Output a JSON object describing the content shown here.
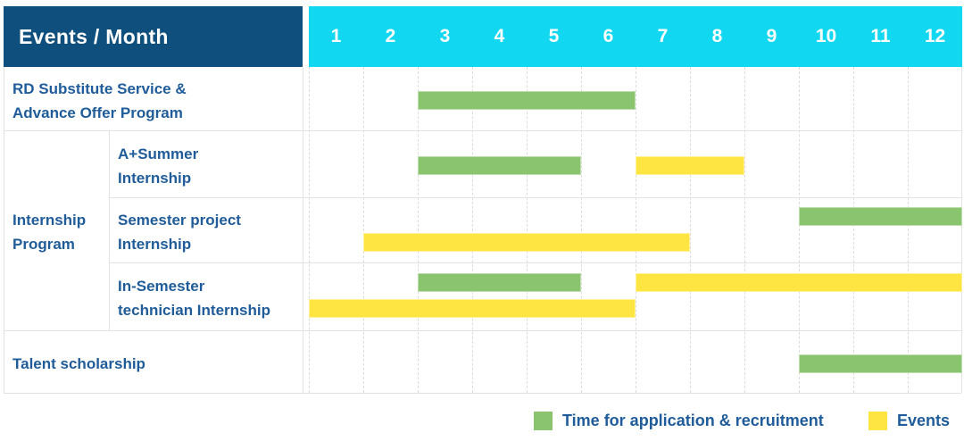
{
  "colors": {
    "navy": "#0F4F7E",
    "cyan": "#11D7F0",
    "green": "#8BC46E",
    "yellow": "#FFE542",
    "label_text": "#1F5C99",
    "grid_line": "#E2E2E2"
  },
  "table": {
    "corner_label": "Events / Month",
    "months": [
      "1",
      "2",
      "3",
      "4",
      "5",
      "6",
      "7",
      "8",
      "9",
      "10",
      "11",
      "12"
    ],
    "groups": [
      {
        "label_lines": [],
        "rows": [
          {
            "label_lines": [
              "RD Substitute Service &",
              "Advance Offer Program"
            ],
            "bars": [
              {
                "kind": "application",
                "start": 3,
                "end": 6,
                "lane": "mid"
              }
            ]
          }
        ]
      },
      {
        "label_lines": [
          "Internship",
          "Program"
        ],
        "rows": [
          {
            "label_lines": [
              "A+Summer",
              "Internship"
            ],
            "bars": [
              {
                "kind": "application",
                "start": 3,
                "end": 5,
                "lane": "mid"
              },
              {
                "kind": "event",
                "start": 7,
                "end": 8,
                "lane": "mid"
              }
            ]
          },
          {
            "label_lines": [
              "Semester project",
              "Internship"
            ],
            "bars": [
              {
                "kind": "application",
                "start": 10,
                "end": 12,
                "lane": "upper"
              },
              {
                "kind": "event",
                "start": 2,
                "end": 7,
                "lane": "lower"
              }
            ]
          },
          {
            "label_lines": [
              "In-Semester",
              "technician Internship"
            ],
            "bars": [
              {
                "kind": "application",
                "start": 3,
                "end": 5,
                "lane": "upper"
              },
              {
                "kind": "event",
                "start": 7,
                "end": 12,
                "lane": "upper"
              },
              {
                "kind": "event",
                "start": 1,
                "end": 6,
                "lane": "lower"
              }
            ]
          }
        ]
      },
      {
        "label_lines": [],
        "rows": [
          {
            "label_lines": [
              "Talent scholarship"
            ],
            "bars": [
              {
                "kind": "application",
                "start": 10,
                "end": 12,
                "lane": "mid"
              }
            ]
          }
        ]
      }
    ]
  },
  "legend": {
    "items": [
      {
        "kind": "application",
        "label": "Time for application & recruitment"
      },
      {
        "kind": "event",
        "label": "Events"
      }
    ]
  },
  "chart_data": {
    "type": "bar",
    "variant": "gantt",
    "title": "Events / Month",
    "xlabel": "Month",
    "x_ticks": [
      1,
      2,
      3,
      4,
      5,
      6,
      7,
      8,
      9,
      10,
      11,
      12
    ],
    "x_range": [
      1,
      12
    ],
    "legend_entries": [
      "Time for application & recruitment",
      "Events"
    ],
    "legend_position": "bottom-right",
    "grid": true,
    "tasks": [
      {
        "group": "",
        "name": "RD Substitute Service & Advance Offer Program",
        "bars": [
          {
            "series": "Time for application & recruitment",
            "start_month": 3,
            "end_month": 6
          }
        ]
      },
      {
        "group": "Internship Program",
        "name": "A+Summer Internship",
        "bars": [
          {
            "series": "Time for application & recruitment",
            "start_month": 3,
            "end_month": 5
          },
          {
            "series": "Events",
            "start_month": 7,
            "end_month": 8
          }
        ]
      },
      {
        "group": "Internship Program",
        "name": "Semester project Internship",
        "bars": [
          {
            "series": "Time for application & recruitment",
            "start_month": 10,
            "end_month": 12
          },
          {
            "series": "Events",
            "start_month": 2,
            "end_month": 7
          }
        ]
      },
      {
        "group": "Internship Program",
        "name": "In-Semester technician Internship",
        "bars": [
          {
            "series": "Time for application & recruitment",
            "start_month": 3,
            "end_month": 5
          },
          {
            "series": "Events",
            "start_month": 7,
            "end_month": 12
          },
          {
            "series": "Events",
            "start_month": 1,
            "end_month": 6
          }
        ]
      },
      {
        "group": "",
        "name": "Talent scholarship",
        "bars": [
          {
            "series": "Time for application & recruitment",
            "start_month": 10,
            "end_month": 12
          }
        ]
      }
    ]
  }
}
